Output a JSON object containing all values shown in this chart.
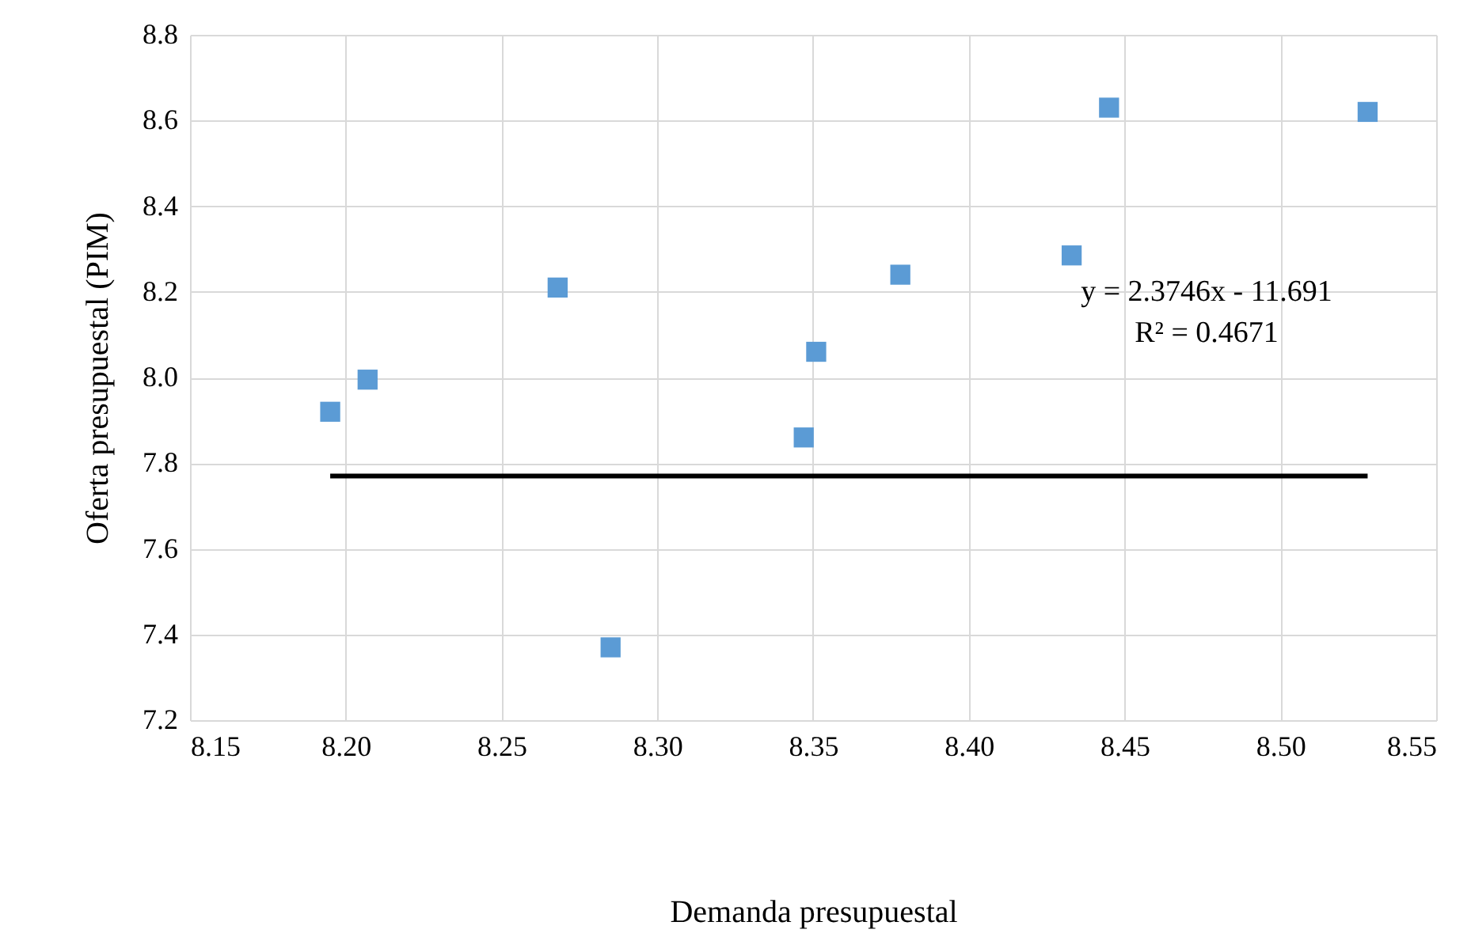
{
  "chart_data": {
    "type": "scatter",
    "xlabel": "Demanda presupuestal",
    "ylabel": "Oferta presupuestal (PIM)",
    "x": [
      8.195,
      8.207,
      8.268,
      8.285,
      8.347,
      8.351,
      8.378,
      8.433,
      8.445,
      8.528
    ],
    "series": [
      {
        "color": "#5b9bd5",
        "marker": "square",
        "values": [
          7.92,
          7.995,
          8.21,
          7.37,
          7.86,
          8.06,
          8.24,
          8.285,
          8.63,
          8.62
        ]
      },
      {
        "type": "line",
        "color": "#000000",
        "line_style": "solid",
        "marker": "none",
        "x": [
          8.195,
          8.528
        ],
        "values": [
          7.77,
          7.77
        ]
      }
    ],
    "annotations": [
      "y = 2.3746x - 11.691",
      "R² = 0.4671"
    ],
    "xlim": [
      8.15,
      8.55
    ],
    "xticks": [
      8.15,
      {
        "value": 8.2,
        "label": "8.20"
      },
      8.25,
      {
        "value": 8.3,
        "label": "8.30"
      },
      8.35,
      {
        "value": 8.4,
        "label": "8.40"
      },
      8.45,
      {
        "value": 8.5,
        "label": "8.50"
      },
      8.55
    ],
    "ylim": [
      7.2,
      8.8
    ],
    "yticks": [
      7.2,
      7.4,
      7.6,
      7.8,
      {
        "value": 8,
        "label": "8.0"
      },
      8.2,
      8.4,
      8.6,
      8.8
    ],
    "grid": true
  }
}
